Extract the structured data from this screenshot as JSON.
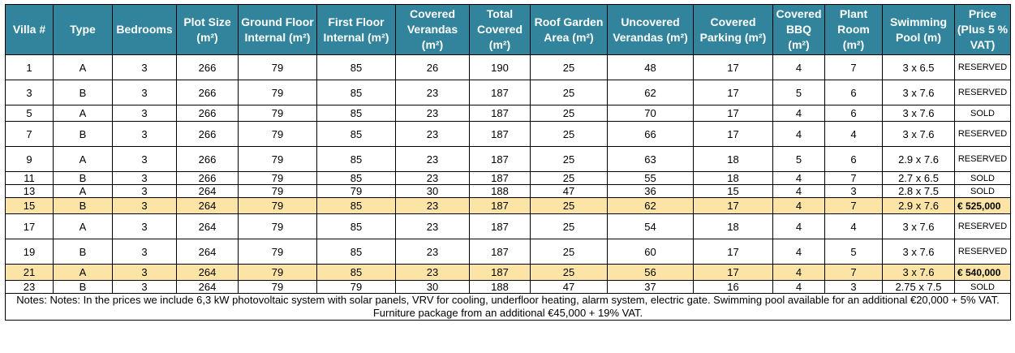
{
  "table": {
    "headers": [
      "Villa #",
      "Type",
      "Bedrooms",
      "Plot Size (m²)",
      "Ground Floor Internal (m²)",
      "First Floor Internal (m²)",
      "Covered Verandas (m²)",
      "Total Covered (m²)",
      "Roof Garden Area (m²)",
      "Uncovered Verandas (m²)",
      "Covered Parking (m²)",
      "Covered BBQ (m²)",
      "Plant Room (m²)",
      "Swimming Pool (m)",
      "Price (Plus 5 % VAT)"
    ],
    "rows": [
      {
        "highlight": false,
        "cells": [
          "1",
          "A",
          "3",
          "266",
          "79",
          "85",
          "26",
          "190",
          "25",
          "48",
          "17",
          "4",
          "7",
          "3 x 6.5",
          "RESERVED"
        ]
      },
      {
        "highlight": false,
        "cells": [
          "3",
          "B",
          "3",
          "266",
          "79",
          "85",
          "23",
          "187",
          "25",
          "62",
          "17",
          "5",
          "6",
          "3 x 7.6",
          "RESERVED"
        ]
      },
      {
        "highlight": false,
        "cells": [
          "5",
          "A",
          "3",
          "266",
          "79",
          "85",
          "23",
          "187",
          "25",
          "70",
          "17",
          "4",
          "6",
          "3 x 7.6",
          "SOLD"
        ]
      },
      {
        "highlight": false,
        "cells": [
          "7",
          "B",
          "3",
          "266",
          "79",
          "85",
          "23",
          "187",
          "25",
          "66",
          "17",
          "4",
          "4",
          "3 x 7.6",
          "RESERVED"
        ]
      },
      {
        "highlight": false,
        "cells": [
          "9",
          "A",
          "3",
          "266",
          "79",
          "85",
          "23",
          "187",
          "25",
          "63",
          "18",
          "5",
          "6",
          "2.9 x 7.6",
          "RESERVED"
        ]
      },
      {
        "highlight": false,
        "cells": [
          "11",
          "B",
          "3",
          "266",
          "79",
          "85",
          "23",
          "187",
          "25",
          "55",
          "18",
          "4",
          "7",
          "2.7 x 6.5",
          "SOLD"
        ]
      },
      {
        "highlight": false,
        "cells": [
          "13",
          "A",
          "3",
          "264",
          "79",
          "79",
          "30",
          "188",
          "47",
          "36",
          "15",
          "4",
          "3",
          "2.8 x 7.5",
          "SOLD"
        ]
      },
      {
        "highlight": true,
        "cells": [
          "15",
          "B",
          "3",
          "264",
          "79",
          "85",
          "23",
          "187",
          "25",
          "62",
          "17",
          "4",
          "7",
          "2.9 x 7.6",
          "€ 525,000"
        ]
      },
      {
        "highlight": false,
        "cells": [
          "17",
          "A",
          "3",
          "264",
          "79",
          "85",
          "23",
          "187",
          "25",
          "54",
          "18",
          "4",
          "4",
          "3 x 7.6",
          "RESERVED"
        ]
      },
      {
        "highlight": false,
        "cells": [
          "19",
          "B",
          "3",
          "264",
          "79",
          "85",
          "23",
          "187",
          "25",
          "60",
          "17",
          "4",
          "5",
          "3 x 7.6",
          "RESERVED"
        ]
      },
      {
        "highlight": true,
        "cells": [
          "21",
          "A",
          "3",
          "264",
          "79",
          "85",
          "23",
          "187",
          "25",
          "56",
          "17",
          "4",
          "7",
          "3 x 7.6",
          "€ 540,000"
        ]
      },
      {
        "highlight": false,
        "cells": [
          "23",
          "B",
          "3",
          "264",
          "79",
          "79",
          "30",
          "188",
          "47",
          "37",
          "16",
          "4",
          "3",
          "2.75 x 7.5",
          "SOLD"
        ]
      }
    ],
    "notes": "Notes: Notes: In the prices we include 6,3 kW photovoltaic system with solar panels, VRV for cooling, underfloor heating, alarm system, electric gate. Swimming pool available for an additional €20,000 + 5% VAT. Furniture package from an additional €45,000 + 19% VAT."
  },
  "colors": {
    "header_bg": "#31849b",
    "header_text": "#ffffff",
    "highlight_row_bg": "#fbe4a6"
  }
}
